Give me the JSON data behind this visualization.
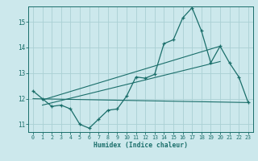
{
  "xlabel": "Humidex (Indice chaleur)",
  "bg_color": "#cce8ec",
  "line_color": "#1a6e6a",
  "grid_color": "#aad0d4",
  "xlim": [
    -0.5,
    23.5
  ],
  "ylim": [
    10.7,
    15.6
  ],
  "xtick_vals": [
    0,
    1,
    2,
    3,
    4,
    5,
    6,
    7,
    8,
    9,
    10,
    11,
    12,
    13,
    14,
    15,
    16,
    17,
    18,
    19,
    20,
    21,
    22,
    23
  ],
  "ytick_vals": [
    11,
    12,
    13,
    14,
    15
  ],
  "main_x": [
    0,
    1,
    2,
    3,
    4,
    5,
    6,
    7,
    8,
    9,
    10,
    11,
    12,
    13,
    14,
    15,
    16,
    17,
    18,
    19,
    20,
    21,
    22,
    23
  ],
  "main_y": [
    12.3,
    12.0,
    11.7,
    11.75,
    11.6,
    11.0,
    10.85,
    11.2,
    11.55,
    11.6,
    12.1,
    12.85,
    12.8,
    12.95,
    14.15,
    14.3,
    15.15,
    15.55,
    14.65,
    13.4,
    14.05,
    13.4,
    12.85,
    11.85
  ],
  "trend1_x": [
    0,
    23
  ],
  "trend1_y": [
    12.0,
    11.85
  ],
  "trend2_x": [
    1,
    20
  ],
  "trend2_y": [
    11.95,
    14.05
  ],
  "trend3_x": [
    1,
    20
  ],
  "trend3_y": [
    11.75,
    13.45
  ]
}
